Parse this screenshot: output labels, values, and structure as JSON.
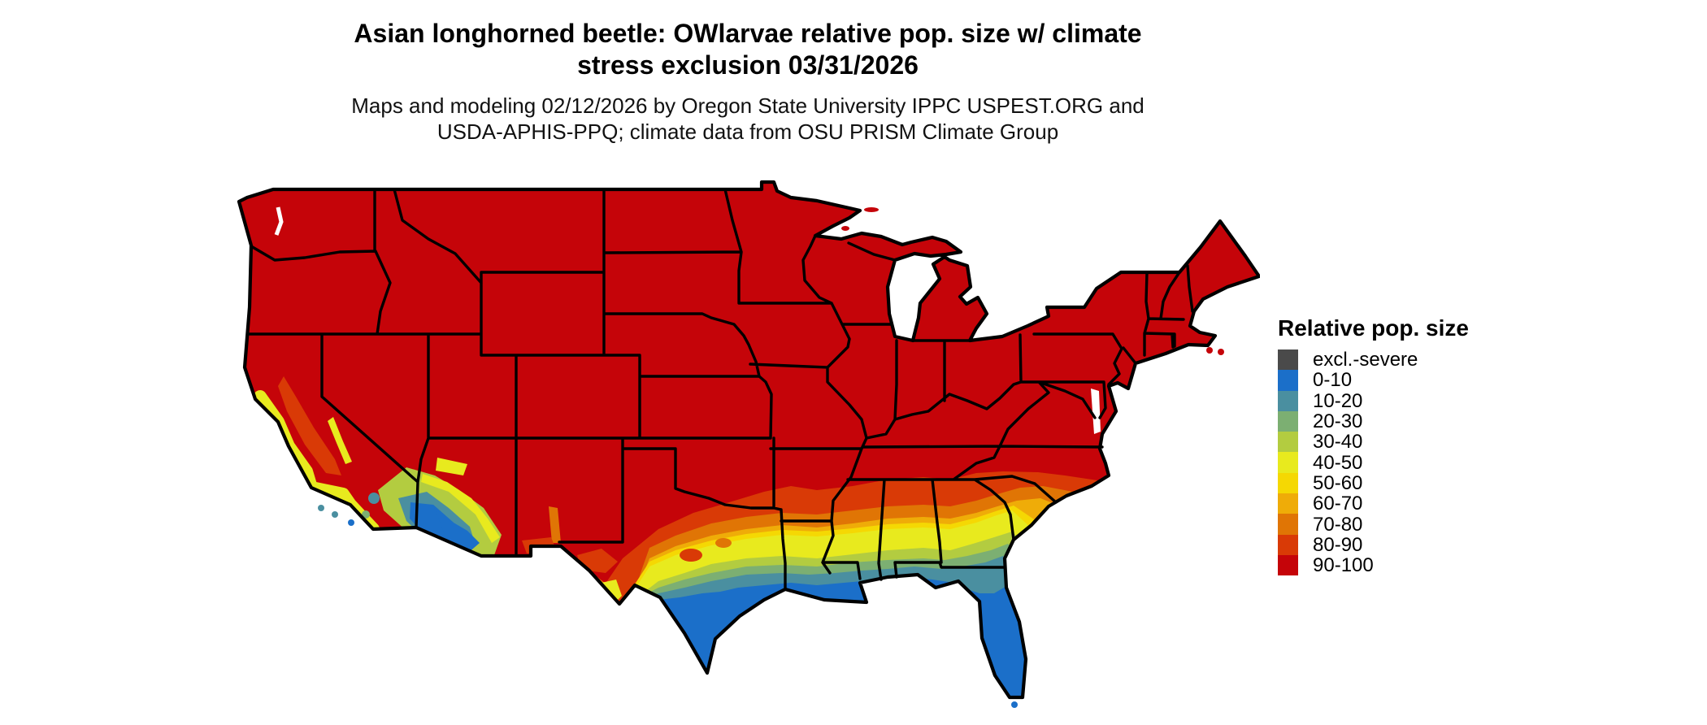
{
  "title": {
    "line1": "Asian longhorned beetle: OWlarvae relative pop. size w/ climate",
    "line2": "stress exclusion 03/31/2026"
  },
  "subtitle": {
    "line1": "Maps and modeling 02/12/2026 by Oregon State University IPPC USPEST.ORG and",
    "line2": "USDA-APHIS-PPQ; climate data from OSU PRISM Climate Group"
  },
  "legend": {
    "title": "Relative pop. size",
    "items": [
      {
        "label": "excl.-severe",
        "color": "#4A4A4A"
      },
      {
        "label": "0-10",
        "color": "#1B6FC9"
      },
      {
        "label": "10-20",
        "color": "#4A8FA0"
      },
      {
        "label": "20-30",
        "color": "#7CAF72"
      },
      {
        "label": "30-40",
        "color": "#B3CC40"
      },
      {
        "label": "40-50",
        "color": "#E8EA1E"
      },
      {
        "label": "50-60",
        "color": "#F5D803"
      },
      {
        "label": "60-70",
        "color": "#EFAC08"
      },
      {
        "label": "70-80",
        "color": "#E07505"
      },
      {
        "label": "80-90",
        "color": "#D93A06"
      },
      {
        "label": "90-100",
        "color": "#C50409"
      }
    ]
  },
  "map": {
    "region": "Contiguous United States",
    "style": "raster choropleth of relative population size",
    "dominant_class": "90-100",
    "pattern": "Most of the US is 90-100 (red); southern band gradient from 80-90 (orange-red) through yellow and green classes down to 0-10 (blue) along the Gulf coast, south Texas and the Florida peninsula; mottled low-value (blue/teal/green/yellow) terrain patches in southern California and Arizona; state borders and coastline drawn in black on white background.",
    "border_color": "#000000",
    "background_color": "#ffffff"
  }
}
